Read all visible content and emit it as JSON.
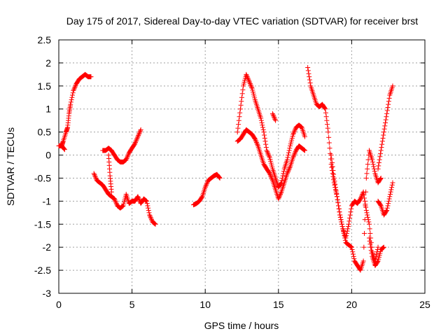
{
  "chart_data": {
    "type": "scatter",
    "title": "Day 175 of 2017, Sidereal Day-to-day VTEC variation (SDTVAR) for receiver brst",
    "xlabel": "GPS time / hours",
    "ylabel": "SDTVAR / TECUs",
    "xlim": [
      0,
      25
    ],
    "ylim": [
      -3,
      2.5
    ],
    "xticks": [
      "0",
      "5",
      "10",
      "15",
      "20",
      "25"
    ],
    "yticks": [
      "-3",
      "-2.5",
      "-2",
      "-1.5",
      "-1",
      "-0.5",
      "0",
      "0.5",
      "1",
      "1.5",
      "2",
      "2.5"
    ],
    "grid": true,
    "marker": "+",
    "color": "#ff0000",
    "series": [
      {
        "name": "seg1",
        "x": [
          0,
          0.2,
          0.3,
          0.5,
          0.6,
          0.7,
          0.8,
          1.0,
          1.2,
          1.4,
          1.6,
          1.8,
          2.0,
          2.2
        ],
        "y": [
          0.2,
          0.2,
          0.3,
          0.5,
          0.6,
          0.9,
          1.1,
          1.4,
          1.55,
          1.65,
          1.7,
          1.75,
          1.7,
          1.7
        ]
      },
      {
        "name": "seg2",
        "x": [
          0.2,
          0.4
        ],
        "y": [
          0.2,
          0.12
        ]
      },
      {
        "name": "seg3",
        "x": [
          2.4,
          2.6,
          2.8,
          3.0,
          3.2,
          3.4,
          3.6,
          3.8,
          4.0,
          4.2,
          4.4,
          4.6,
          4.8,
          5.0,
          5.2,
          5.4,
          5.6,
          5.8,
          6.0,
          6.2,
          6.4,
          6.6
        ],
        "y": [
          -0.4,
          -0.55,
          -0.6,
          -0.65,
          -0.75,
          -0.85,
          -0.9,
          -0.95,
          -1.1,
          -1.15,
          -1.1,
          -0.85,
          -1.05,
          -1.0,
          -1.0,
          -0.9,
          -1.05,
          -0.95,
          -1.0,
          -1.3,
          -1.45,
          -1.5
        ]
      },
      {
        "name": "seg4",
        "x": [
          3.0,
          3.2,
          3.4,
          3.6,
          3.8,
          4.0,
          4.2,
          4.4,
          4.6,
          4.8,
          5.0,
          5.2,
          5.4,
          5.6
        ],
        "y": [
          0.1,
          0.1,
          0.15,
          0.1,
          0.0,
          -0.1,
          -0.15,
          -0.15,
          -0.1,
          0.05,
          0.15,
          0.25,
          0.4,
          0.55
        ]
      },
      {
        "name": "seg5",
        "x": [
          3.4,
          3.5,
          3.6
        ],
        "y": [
          0.0,
          -0.45,
          -0.8
        ]
      },
      {
        "name": "seg6",
        "x": [
          9.2,
          9.4,
          9.6,
          9.8,
          10.0,
          10.2,
          10.4,
          10.6,
          10.8,
          11.0
        ],
        "y": [
          -1.08,
          -1.05,
          -1.0,
          -0.9,
          -0.7,
          -0.55,
          -0.5,
          -0.45,
          -0.42,
          -0.5
        ]
      },
      {
        "name": "seg7",
        "x": [
          12.2,
          12.4,
          12.6,
          12.8,
          13.0,
          13.2,
          13.4,
          13.6,
          13.8,
          14.0,
          14.2,
          14.4,
          14.6,
          14.8,
          15.0,
          15.2,
          15.4,
          15.6,
          15.8,
          16.0,
          16.2,
          16.4,
          16.6,
          16.8
        ],
        "y": [
          0.5,
          1.0,
          1.5,
          1.75,
          1.6,
          1.45,
          1.2,
          1.0,
          0.8,
          0.5,
          0.1,
          -0.05,
          -0.3,
          -0.5,
          -0.7,
          -0.6,
          -0.3,
          -0.1,
          0.2,
          0.45,
          0.6,
          0.65,
          0.6,
          0.4
        ]
      },
      {
        "name": "seg8",
        "x": [
          12.2,
          12.4,
          12.6,
          12.8,
          13.0,
          13.2,
          13.4,
          13.6,
          13.8,
          14.0,
          14.2,
          14.4,
          14.6,
          14.8,
          15.0,
          15.2,
          15.4,
          15.6,
          15.8,
          16.0,
          16.2,
          16.4,
          16.6,
          16.8
        ],
        "y": [
          0.3,
          0.35,
          0.45,
          0.55,
          0.5,
          0.45,
          0.35,
          0.2,
          0.0,
          -0.2,
          -0.3,
          -0.4,
          -0.55,
          -0.75,
          -0.95,
          -0.8,
          -0.6,
          -0.4,
          -0.25,
          -0.05,
          0.1,
          0.2,
          0.15,
          0.1
        ]
      },
      {
        "name": "seg9",
        "x": [
          14.6,
          14.8
        ],
        "y": [
          0.9,
          0.75
        ]
      },
      {
        "name": "seg10",
        "x": [
          17.0,
          17.2,
          17.4,
          17.6,
          17.8,
          18.0,
          18.2,
          18.4,
          18.6,
          18.8,
          19.0,
          19.2,
          19.4,
          19.6,
          19.8,
          20.0,
          20.2,
          20.4,
          20.6,
          20.8,
          21.0,
          21.2,
          21.4,
          21.6,
          21.8
        ],
        "y": [
          1.9,
          1.5,
          1.3,
          1.1,
          1.05,
          1.1,
          1.0,
          0.5,
          -0.2,
          -0.6,
          -0.9,
          -1.3,
          -1.6,
          -1.8,
          -1.5,
          -1.1,
          -1.0,
          -1.05,
          -0.95,
          -0.8,
          -1.2,
          -1.5,
          -2.1,
          -2.3,
          -2.0
        ]
      },
      {
        "name": "seg11",
        "x": [
          18.6,
          18.8,
          19.0,
          19.2,
          19.4,
          19.6,
          19.8,
          20.0,
          20.2,
          20.4,
          20.6,
          20.8,
          21.0,
          21.2,
          21.4,
          21.6,
          21.8,
          22.0
        ],
        "y": [
          0.0,
          -0.5,
          -0.9,
          -1.3,
          -1.6,
          -1.9,
          -1.95,
          -2.0,
          -2.3,
          -2.4,
          -2.5,
          -2.3,
          -0.5,
          0.1,
          -0.1,
          -0.4,
          -0.6,
          -0.5
        ]
      },
      {
        "name": "seg12",
        "x": [
          21.2,
          21.4,
          21.6,
          21.8,
          22.0,
          22.2
        ],
        "y": [
          -1.8,
          -2.2,
          -2.4,
          -2.3,
          -2.05,
          -2.0
        ]
      },
      {
        "name": "seg13",
        "x": [
          21.8,
          22.0,
          22.2,
          22.4,
          22.6,
          22.8
        ],
        "y": [
          -1.0,
          -1.1,
          -1.3,
          -1.2,
          -0.9,
          -0.6
        ]
      },
      {
        "name": "seg14",
        "x": [
          21.8,
          22.0,
          22.2,
          22.4,
          22.6,
          22.8
        ],
        "y": [
          -0.3,
          0.1,
          0.5,
          0.9,
          1.3,
          1.5
        ]
      }
    ]
  }
}
